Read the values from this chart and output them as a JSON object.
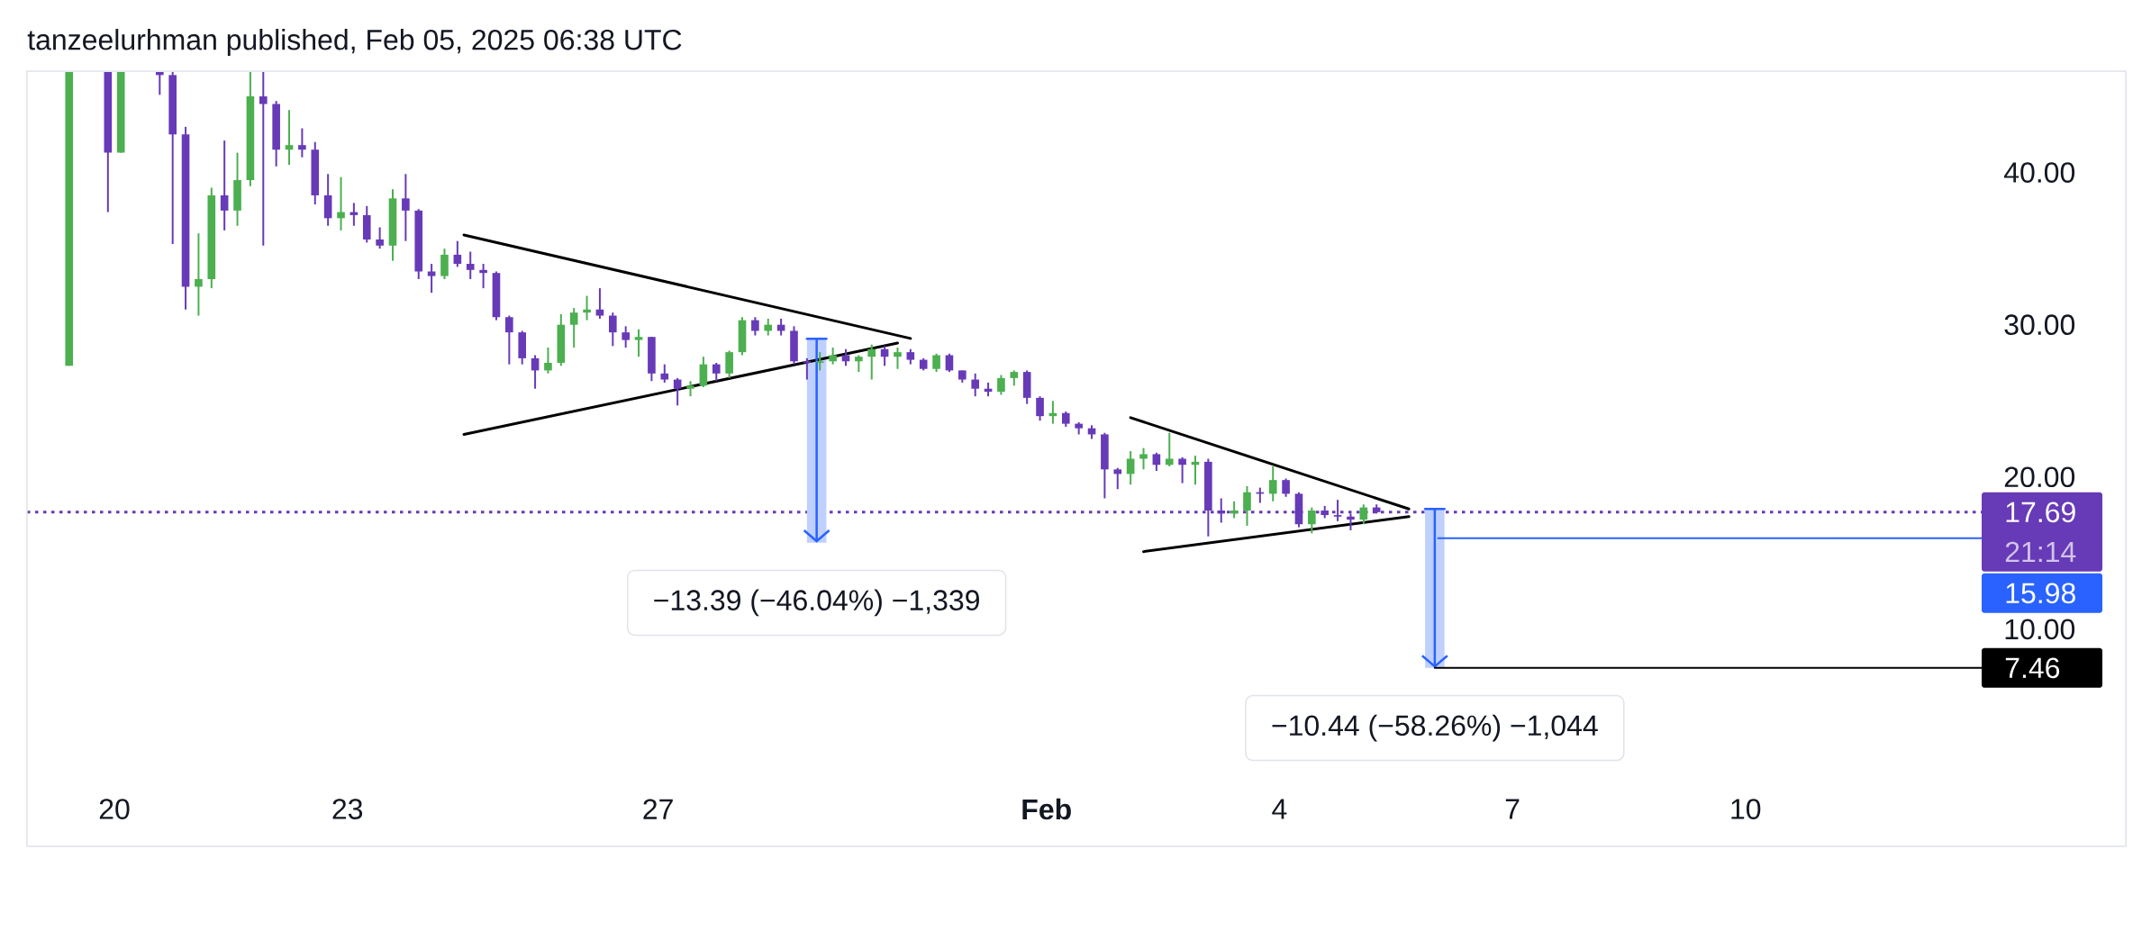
{
  "chart_data": {
    "type": "candlestick",
    "title": "tanzeelurhman published, Feb 05, 2025 06:38 UTC",
    "series": [
      {
        "x": [
          "2025-01-19T10:00",
          "2025-01-19T22:00",
          "2025-01-20T02:00",
          "2025-01-20T14:00",
          "2025-01-20T18:00",
          "2025-01-20T22:00",
          "2025-01-21T02:00",
          "2025-01-21T06:00",
          "2025-01-21T10:00",
          "2025-01-21T14:00",
          "2025-01-21T18:00",
          "2025-01-21T22:00",
          "2025-01-22T02:00",
          "2025-01-22T06:00",
          "2025-01-22T10:00",
          "2025-01-22T14:00",
          "2025-01-22T18:00",
          "2025-01-22T22:00",
          "2025-01-23T02:00",
          "2025-01-23T06:00",
          "2025-01-23T10:00",
          "2025-01-23T14:00",
          "2025-01-23T18:00",
          "2025-01-23T22:00",
          "2025-01-24T02:00",
          "2025-01-24T06:00",
          "2025-01-24T10:00",
          "2025-01-24T14:00",
          "2025-01-24T18:00",
          "2025-01-24T22:00",
          "2025-01-25T02:00",
          "2025-01-25T06:00",
          "2025-01-25T10:00",
          "2025-01-25T14:00",
          "2025-01-25T18:00",
          "2025-01-25T22:00",
          "2025-01-26T02:00",
          "2025-01-26T06:00",
          "2025-01-26T10:00",
          "2025-01-26T14:00",
          "2025-01-26T18:00",
          "2025-01-26T22:00",
          "2025-01-27T02:00",
          "2025-01-27T06:00",
          "2025-01-27T10:00",
          "2025-01-27T14:00",
          "2025-01-27T18:00",
          "2025-01-27T22:00",
          "2025-01-28T02:00",
          "2025-01-28T06:00",
          "2025-01-28T10:00",
          "2025-01-28T14:00",
          "2025-01-28T18:00",
          "2025-01-28T22:00",
          "2025-01-29T02:00",
          "2025-01-29T06:00",
          "2025-01-29T10:00",
          "2025-01-29T14:00",
          "2025-01-29T18:00",
          "2025-01-29T22:00",
          "2025-01-30T02:00",
          "2025-01-30T06:00",
          "2025-01-30T10:00",
          "2025-01-30T14:00",
          "2025-01-30T18:00",
          "2025-01-30T22:00",
          "2025-01-31T02:00",
          "2025-01-31T06:00",
          "2025-01-31T10:00",
          "2025-01-31T14:00",
          "2025-01-31T18:00",
          "2025-01-31T22:00",
          "2025-02-01T02:00",
          "2025-02-01T06:00",
          "2025-02-01T10:00",
          "2025-02-01T14:00",
          "2025-02-01T18:00",
          "2025-02-01T22:00",
          "2025-02-02T02:00",
          "2025-02-02T06:00",
          "2025-02-02T10:00",
          "2025-02-02T14:00",
          "2025-02-02T18:00",
          "2025-02-02T22:00",
          "2025-02-03T02:00",
          "2025-02-03T06:00",
          "2025-02-03T10:00",
          "2025-02-03T14:00",
          "2025-02-03T18:00",
          "2025-02-03T22:00",
          "2025-02-04T02:00",
          "2025-02-04T06:00",
          "2025-02-04T10:00",
          "2025-02-04T14:00",
          "2025-02-04T18:00",
          "2025-02-04T22:00",
          "2025-02-05T02:00",
          "2025-02-05T06:00"
        ],
        "ohlc": [
          [
            27.3,
            46.6,
            27.3,
            46.6
          ],
          [
            46.6,
            46.6,
            37.4,
            41.3
          ],
          [
            41.3,
            46.6,
            41.3,
            46.6
          ],
          [
            46.6,
            46.6,
            45.1,
            46.4
          ],
          [
            46.4,
            46.6,
            35.3,
            42.5
          ],
          [
            42.5,
            43.0,
            31.0,
            32.5
          ],
          [
            32.5,
            36.0,
            30.6,
            33.0
          ],
          [
            33.0,
            39.0,
            32.4,
            38.5
          ],
          [
            38.5,
            42.1,
            36.2,
            37.5
          ],
          [
            37.5,
            41.3,
            36.5,
            39.5
          ],
          [
            39.5,
            46.6,
            39.1,
            45.0
          ],
          [
            45.0,
            46.6,
            35.2,
            44.5
          ],
          [
            44.5,
            44.7,
            40.4,
            41.5
          ],
          [
            41.5,
            44.1,
            40.5,
            41.8
          ],
          [
            41.8,
            42.9,
            41.0,
            41.5
          ],
          [
            41.5,
            42.0,
            37.9,
            38.5
          ],
          [
            38.5,
            39.9,
            36.5,
            37.0
          ],
          [
            37.0,
            39.7,
            36.2,
            37.4
          ],
          [
            37.4,
            38.0,
            36.5,
            37.2
          ],
          [
            37.2,
            37.8,
            35.4,
            35.6
          ],
          [
            35.6,
            36.4,
            35.0,
            35.2
          ],
          [
            35.2,
            38.9,
            34.2,
            38.3
          ],
          [
            38.3,
            39.9,
            35.5,
            37.5
          ],
          [
            37.5,
            37.6,
            33.0,
            33.5
          ],
          [
            33.5,
            34.0,
            32.1,
            33.2
          ],
          [
            33.2,
            35.0,
            33.0,
            34.6
          ],
          [
            34.6,
            35.5,
            33.8,
            34.0
          ],
          [
            34.0,
            34.8,
            33.0,
            33.6
          ],
          [
            33.6,
            34.0,
            32.4,
            33.4
          ],
          [
            33.4,
            33.5,
            30.3,
            30.5
          ],
          [
            30.5,
            30.6,
            27.4,
            29.5
          ],
          [
            29.5,
            29.6,
            27.4,
            27.8
          ],
          [
            27.8,
            28.0,
            25.8,
            27.0
          ],
          [
            27.0,
            28.5,
            26.8,
            27.5
          ],
          [
            27.5,
            30.7,
            27.3,
            30.0
          ],
          [
            30.0,
            31.1,
            28.5,
            30.8
          ],
          [
            30.8,
            31.9,
            30.3,
            31.0
          ],
          [
            31.0,
            32.4,
            30.4,
            30.6
          ],
          [
            30.6,
            30.8,
            28.6,
            29.5
          ],
          [
            29.5,
            29.9,
            28.5,
            29.0
          ],
          [
            29.0,
            29.7,
            27.9,
            29.2
          ],
          [
            29.2,
            29.2,
            26.3,
            26.8
          ],
          [
            26.8,
            27.4,
            26.2,
            26.4
          ],
          [
            26.4,
            26.5,
            24.7,
            25.8
          ],
          [
            25.8,
            26.3,
            25.3,
            26.0
          ],
          [
            26.0,
            27.9,
            25.9,
            27.4
          ],
          [
            27.4,
            27.5,
            26.3,
            26.8
          ],
          [
            26.8,
            28.3,
            26.5,
            28.2
          ],
          [
            28.2,
            30.5,
            28.0,
            30.3
          ],
          [
            30.3,
            30.5,
            29.3,
            29.6
          ],
          [
            29.6,
            30.4,
            29.3,
            30.0
          ],
          [
            30.0,
            30.4,
            29.3,
            29.6
          ],
          [
            29.6,
            29.9,
            27.4,
            27.6
          ],
          [
            27.6,
            27.8,
            26.4,
            27.5
          ],
          [
            27.5,
            28.2,
            27.0,
            27.6
          ],
          [
            27.6,
            28.5,
            27.4,
            28.0
          ],
          [
            28.0,
            28.4,
            27.3,
            27.6
          ],
          [
            27.6,
            28.0,
            26.9,
            27.9
          ],
          [
            27.9,
            28.7,
            26.4,
            28.4
          ],
          [
            28.4,
            28.6,
            27.3,
            27.9
          ],
          [
            27.9,
            28.5,
            27.1,
            28.2
          ],
          [
            28.2,
            28.4,
            27.4,
            27.7
          ],
          [
            27.7,
            27.8,
            27.0,
            27.1
          ],
          [
            27.1,
            28.1,
            26.9,
            28.0
          ],
          [
            28.0,
            28.1,
            26.9,
            27.0
          ],
          [
            27.0,
            27.0,
            26.2,
            26.4
          ],
          [
            26.4,
            26.8,
            25.3,
            25.8
          ],
          [
            25.8,
            26.2,
            25.3,
            25.6
          ],
          [
            25.6,
            26.7,
            25.4,
            26.5
          ],
          [
            26.5,
            27.0,
            26.0,
            26.9
          ],
          [
            26.9,
            27.0,
            24.8,
            25.2
          ],
          [
            25.2,
            25.3,
            23.7,
            24.0
          ],
          [
            24.0,
            25.0,
            23.5,
            24.2
          ],
          [
            24.2,
            24.3,
            23.3,
            23.5
          ],
          [
            23.5,
            23.6,
            22.8,
            23.2
          ],
          [
            23.2,
            23.4,
            22.5,
            22.8
          ],
          [
            22.8,
            22.9,
            18.6,
            20.5
          ],
          [
            20.5,
            20.6,
            19.2,
            20.2
          ],
          [
            20.2,
            21.7,
            19.5,
            21.2
          ],
          [
            21.2,
            21.9,
            20.5,
            21.5
          ],
          [
            21.5,
            21.6,
            20.4,
            20.8
          ],
          [
            20.8,
            22.9,
            20.7,
            21.2
          ],
          [
            21.2,
            21.3,
            19.6,
            20.8
          ],
          [
            20.8,
            21.4,
            19.5,
            21.0
          ],
          [
            21.0,
            21.2,
            16.1,
            17.8
          ],
          [
            17.8,
            18.6,
            17.0,
            17.6
          ],
          [
            17.6,
            18.4,
            17.3,
            17.8
          ],
          [
            17.8,
            19.4,
            16.8,
            19.0
          ],
          [
            19.0,
            19.3,
            18.3,
            18.9
          ],
          [
            18.9,
            20.7,
            18.4,
            19.8
          ],
          [
            19.8,
            19.9,
            18.7,
            18.9
          ],
          [
            18.9,
            19.0,
            16.7,
            16.9
          ],
          [
            16.9,
            18.0,
            16.3,
            17.8
          ],
          [
            17.8,
            18.1,
            17.3,
            17.5
          ],
          [
            17.5,
            18.5,
            17.1,
            17.4
          ],
          [
            17.4,
            17.6,
            16.5,
            17.2
          ],
          [
            17.2,
            18.2,
            16.9,
            18.0
          ],
          [
            18.0,
            18.2,
            17.6,
            17.69
          ]
        ],
        "colors": [
          "#4caf50",
          "#673ab7",
          "#4caf50",
          "#673ab7",
          "#673ab7",
          "#673ab7",
          "#4caf50",
          "#4caf50",
          "#673ab7",
          "#4caf50",
          "#4caf50",
          "#673ab7",
          "#673ab7",
          "#4caf50",
          "#673ab7",
          "#673ab7",
          "#673ab7",
          "#4caf50",
          "#673ab7",
          "#673ab7",
          "#673ab7",
          "#4caf50",
          "#673ab7",
          "#673ab7",
          "#673ab7",
          "#4caf50",
          "#673ab7",
          "#673ab7",
          "#673ab7",
          "#673ab7",
          "#673ab7",
          "#673ab7",
          "#673ab7",
          "#4caf50",
          "#4caf50",
          "#4caf50",
          "#4caf50",
          "#673ab7",
          "#673ab7",
          "#673ab7",
          "#4caf50",
          "#673ab7",
          "#673ab7",
          "#673ab7",
          "#4caf50",
          "#4caf50",
          "#673ab7",
          "#4caf50",
          "#4caf50",
          "#673ab7",
          "#4caf50",
          "#673ab7",
          "#673ab7",
          "#673ab7",
          "#4caf50",
          "#4caf50",
          "#673ab7",
          "#4caf50",
          "#4caf50",
          "#673ab7",
          "#4caf50",
          "#673ab7",
          "#673ab7",
          "#4caf50",
          "#673ab7",
          "#673ab7",
          "#673ab7",
          "#673ab7",
          "#4caf50",
          "#4caf50",
          "#673ab7",
          "#673ab7",
          "#4caf50",
          "#673ab7",
          "#673ab7",
          "#673ab7",
          "#673ab7",
          "#673ab7",
          "#4caf50",
          "#4caf50",
          "#673ab7",
          "#4caf50",
          "#673ab7",
          "#4caf50",
          "#673ab7",
          "#673ab7",
          "#4caf50",
          "#4caf50",
          "#673ab7",
          "#4caf50",
          "#673ab7",
          "#673ab7",
          "#4caf50",
          "#673ab7",
          "#673ab7",
          "#673ab7",
          "#4caf50",
          "#673ab7"
        ]
      },
      {
        "type": "line",
        "x": [
          "2025-01-24T12:00",
          "2025-01-30T06:00"
        ],
        "values": [
          35.9,
          29.1
        ],
        "color": "#000000"
      },
      {
        "type": "line",
        "x": [
          "2025-01-24T12:00",
          "2025-01-30T02:00"
        ],
        "values": [
          22.8,
          28.8
        ],
        "color": "#000000"
      },
      {
        "type": "line",
        "x": [
          "2025-02-02T02:00",
          "2025-02-05T16:00"
        ],
        "values": [
          23.9,
          17.9
        ],
        "color": "#000000"
      },
      {
        "type": "line",
        "x": [
          "2025-02-02T06:00",
          "2025-02-05T16:00"
        ],
        "values": [
          15.1,
          17.4
        ],
        "color": "#000000"
      },
      {
        "type": "bar",
        "x": [
          "2025-01-29T01:00",
          "2025-02-06T00:00"
        ],
        "base": [
          29.08,
          17.9
        ],
        "values": [
          -13.39,
          -10.44
        ],
        "color": "#bfd0ff"
      },
      {
        "type": "line",
        "x": [
          "2025-01-28T22:00",
          "2025-01-29T04:00"
        ],
        "values": [
          29.08,
          29.08
        ],
        "color": "#2962ff"
      },
      {
        "type": "line",
        "x": [
          "2025-01-29T01:00",
          "2025-01-29T01:00"
        ],
        "values": [
          29.08,
          15.69
        ],
        "color": "#2962ff"
      },
      {
        "type": "line",
        "x": [
          "2025-02-05T21:00",
          "2025-02-06T03:00"
        ],
        "values": [
          17.9,
          17.9
        ],
        "color": "#2962ff"
      },
      {
        "type": "line",
        "x": [
          "2025-02-06T00:00",
          "2025-02-06T00:00"
        ],
        "values": [
          17.9,
          7.46
        ],
        "color": "#2962ff"
      },
      {
        "type": "line",
        "x": [
          "2025-02-06T01:00",
          "2025-02-13T01:00"
        ],
        "values": [
          15.98,
          15.98
        ],
        "color": "#2962ff",
        "value_labels": [
          null,
          "15.98"
        ]
      },
      {
        "type": "line",
        "x": [
          "2025-02-06T00:00",
          "2025-02-13T01:00"
        ],
        "values": [
          7.46,
          7.46
        ],
        "color": "#000000",
        "value_labels": [
          null,
          "7.46"
        ]
      }
    ],
    "ref_lines": [
      {
        "axis": "y",
        "value": 17.69,
        "label": "17.69",
        "color": "#673ab7",
        "line_style": "dotted"
      }
    ],
    "annotations": [
      {
        "text": "−13.39 (−46.04%) −1,339",
        "x": "2025-01-29T01:00",
        "y": 15.69
      },
      {
        "text": "−10.44 (−58.26%) −1,044",
        "x": "2025-02-06T00:00",
        "y": 7.46
      },
      "21:14"
    ],
    "xlim": [
      "2025-01-18T21:00",
      "2025-02-13T01:00"
    ],
    "ylim": [
      0,
      46.6
    ],
    "xticks": [
      {
        "value": "2025-01-20",
        "label": "20"
      },
      {
        "value": "2025-01-23",
        "label": "23"
      },
      {
        "value": "2025-01-27",
        "label": "27"
      },
      {
        "value": "2025-02-01",
        "label": "Feb"
      },
      {
        "value": "2025-02-04",
        "label": "4"
      },
      {
        "value": "2025-02-07",
        "label": "7"
      },
      {
        "value": "2025-02-10",
        "label": "10"
      }
    ],
    "yticks": [
      {
        "value": 10,
        "label": "10.00"
      },
      {
        "value": 20,
        "label": "20.00"
      },
      {
        "value": 30,
        "label": "30.00"
      },
      {
        "value": 40,
        "label": "40.00"
      }
    ]
  }
}
